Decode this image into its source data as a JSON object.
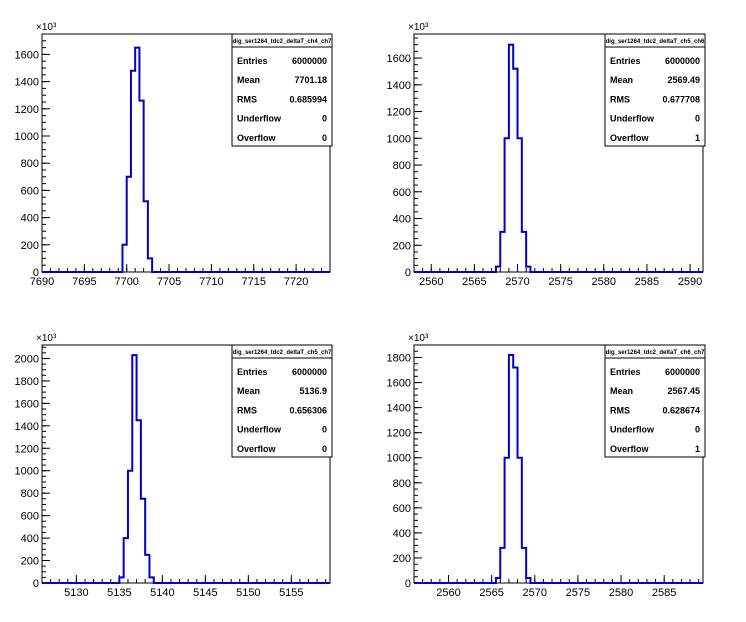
{
  "chart_data": [
    {
      "type": "histogram",
      "stats_title": "dig_ser1264_tdc2_deltaT_ch4_ch7",
      "y_exponent": "×10³",
      "xlim": [
        7690,
        7724
      ],
      "ylim": [
        0,
        1750
      ],
      "x_ticks": [
        7690,
        7695,
        7700,
        7705,
        7710,
        7715,
        7720
      ],
      "y_ticks": [
        0,
        200,
        400,
        600,
        800,
        1000,
        1200,
        1400,
        1600
      ],
      "bin_width": 0.5,
      "bins_start": 7699.5,
      "values": [
        200,
        700,
        1480,
        1650,
        1260,
        520,
        100
      ],
      "stats": [
        {
          "label": "Entries",
          "value": "6000000"
        },
        {
          "label": "Mean",
          "value": "7701.18"
        },
        {
          "label": "RMS",
          "value": "0.685994"
        },
        {
          "label": "Underflow",
          "value": "0"
        },
        {
          "label": "Overflow",
          "value": "0"
        }
      ]
    },
    {
      "type": "histogram",
      "stats_title": "dig_ser1264_tdc2_deltaT_ch5_ch6",
      "y_exponent": "×10³",
      "xlim": [
        2558,
        2591.5
      ],
      "ylim": [
        0,
        1780
      ],
      "x_ticks": [
        2560,
        2565,
        2570,
        2575,
        2580,
        2585,
        2590
      ],
      "y_ticks": [
        0,
        200,
        400,
        600,
        800,
        1000,
        1200,
        1400,
        1600
      ],
      "bin_width": 0.5,
      "bins_start": 2567.5,
      "values": [
        40,
        300,
        1000,
        1700,
        1520,
        1000,
        300,
        40
      ],
      "stats": [
        {
          "label": "Entries",
          "value": "6000000"
        },
        {
          "label": "Mean",
          "value": "2569.49"
        },
        {
          "label": "RMS",
          "value": "0.677708"
        },
        {
          "label": "Underflow",
          "value": "0"
        },
        {
          "label": "Overflow",
          "value": "1"
        }
      ]
    },
    {
      "type": "histogram",
      "stats_title": "dig_ser1264_tdc2_deltaT_ch5_ch7",
      "y_exponent": "×10³",
      "xlim": [
        5126,
        5159.5
      ],
      "ylim": [
        0,
        2120
      ],
      "x_ticks": [
        5130,
        5135,
        5140,
        5145,
        5150,
        5155
      ],
      "y_ticks": [
        0,
        200,
        400,
        600,
        800,
        1000,
        1200,
        1400,
        1600,
        1800,
        2000
      ],
      "bin_width": 0.5,
      "bins_start": 5135,
      "values": [
        50,
        400,
        1000,
        2030,
        1450,
        750,
        250,
        50
      ],
      "stats": [
        {
          "label": "Entries",
          "value": "6000000"
        },
        {
          "label": "Mean",
          "value": "5136.9"
        },
        {
          "label": "RMS",
          "value": "0.656306"
        },
        {
          "label": "Underflow",
          "value": "0"
        },
        {
          "label": "Overflow",
          "value": "0"
        }
      ]
    },
    {
      "type": "histogram",
      "stats_title": "dig_ser1264_tdc2_deltaT_ch6_ch7",
      "y_exponent": "×10³",
      "xlim": [
        2556,
        2589.5
      ],
      "ylim": [
        0,
        1900
      ],
      "x_ticks": [
        2560,
        2565,
        2570,
        2575,
        2580,
        2585
      ],
      "y_ticks": [
        0,
        200,
        400,
        600,
        800,
        1000,
        1200,
        1400,
        1600,
        1800
      ],
      "bin_width": 0.5,
      "bins_start": 2565.5,
      "values": [
        40,
        280,
        1000,
        1820,
        1720,
        1000,
        280,
        40
      ],
      "stats": [
        {
          "label": "Entries",
          "value": "6000000"
        },
        {
          "label": "Mean",
          "value": "2567.45"
        },
        {
          "label": "RMS",
          "value": "0.628674"
        },
        {
          "label": "Underflow",
          "value": "0"
        },
        {
          "label": "Overflow",
          "value": "1"
        }
      ]
    }
  ]
}
